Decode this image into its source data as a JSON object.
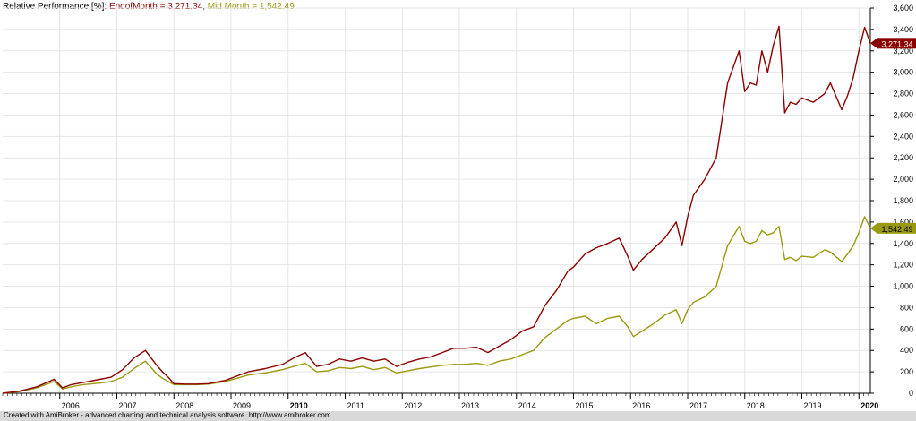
{
  "header": {
    "prefix": "Relative Performance [%]: ",
    "series1_label": "EndofMonth = 3,271.34",
    "sep": ", ",
    "series2_label": "Mid Month = 1,542.49"
  },
  "footer": {
    "text": "Created with AmiBroker - advanced charting and technical analysis software. http://www.amibroker.com"
  },
  "colors": {
    "end_of_month": "#8b0000",
    "mid_month": "#9a9a10",
    "grid": "#e6e6e6",
    "axis": "#000000"
  },
  "chart_data": {
    "type": "line",
    "ylim": [
      0,
      3600
    ],
    "y_ticks": [
      0,
      200,
      400,
      600,
      800,
      1000,
      1200,
      1400,
      1600,
      1800,
      2000,
      2200,
      2400,
      2600,
      2800,
      3000,
      3200,
      3400,
      3600
    ],
    "y_tick_labels": [
      "0",
      "200",
      "400",
      "600",
      "800",
      "1,000",
      "1,200",
      "1,400",
      "1,600",
      "1,800",
      "2,000",
      "2,200",
      "2,400",
      "2,600",
      "2,800",
      "3,000",
      "3,200",
      "3,400",
      "3,600"
    ],
    "xlim": [
      2005.0,
      2020.2
    ],
    "x_tick_labels": [
      "2006",
      "2007",
      "2008",
      "2009",
      "2010",
      "2011",
      "2012",
      "2013",
      "2014",
      "2015",
      "2016",
      "2017",
      "2018",
      "2019",
      "2020"
    ],
    "x_ticks": [
      2006,
      2007,
      2008,
      2009,
      2010,
      2011,
      2012,
      2013,
      2014,
      2015,
      2016,
      2017,
      2018,
      2019,
      2020
    ],
    "grid": true,
    "series": [
      {
        "name": "EndofMonth",
        "last_value_label": "3,271.34",
        "x": [
          2005.0,
          2005.3,
          2005.6,
          2005.9,
          2006.05,
          2006.2,
          2006.4,
          2006.7,
          2006.9,
          2007.1,
          2007.3,
          2007.5,
          2007.7,
          2007.8,
          2007.9,
          2008.0,
          2008.2,
          2008.4,
          2008.6,
          2008.9,
          2009.1,
          2009.3,
          2009.6,
          2009.9,
          2010.1,
          2010.3,
          2010.5,
          2010.7,
          2010.9,
          2011.1,
          2011.3,
          2011.5,
          2011.7,
          2011.9,
          2012.1,
          2012.3,
          2012.5,
          2012.7,
          2012.9,
          2013.1,
          2013.3,
          2013.5,
          2013.7,
          2013.9,
          2014.1,
          2014.3,
          2014.5,
          2014.7,
          2014.9,
          2015.0,
          2015.2,
          2015.4,
          2015.6,
          2015.8,
          2015.95,
          2016.05,
          2016.2,
          2016.4,
          2016.6,
          2016.8,
          2016.9,
          2017.0,
          2017.1,
          2017.3,
          2017.5,
          2017.7,
          2017.9,
          2018.0,
          2018.1,
          2018.2,
          2018.3,
          2018.4,
          2018.5,
          2018.6,
          2018.7,
          2018.8,
          2018.9,
          2019.0,
          2019.2,
          2019.4,
          2019.5,
          2019.7,
          2019.8,
          2019.9,
          2020.0,
          2020.1,
          2020.2
        ],
        "y": [
          0,
          20,
          60,
          130,
          50,
          80,
          100,
          130,
          150,
          220,
          330,
          400,
          260,
          200,
          150,
          90,
          85,
          85,
          90,
          120,
          160,
          200,
          230,
          270,
          330,
          380,
          250,
          270,
          320,
          300,
          330,
          300,
          320,
          250,
          290,
          320,
          340,
          380,
          420,
          420,
          430,
          380,
          440,
          500,
          580,
          620,
          820,
          960,
          1140,
          1180,
          1300,
          1360,
          1400,
          1450,
          1280,
          1150,
          1250,
          1350,
          1450,
          1600,
          1380,
          1650,
          1850,
          2000,
          2200,
          2900,
          3200,
          2820,
          2900,
          2880,
          3200,
          3000,
          3250,
          3430,
          2620,
          2720,
          2700,
          2760,
          2720,
          2800,
          2900,
          2650,
          2780,
          2950,
          3200,
          3420,
          3271
        ]
      },
      {
        "name": "Mid Month",
        "last_value_label": "1,542.49",
        "x": [
          2005.0,
          2005.3,
          2005.6,
          2005.9,
          2006.05,
          2006.2,
          2006.4,
          2006.7,
          2006.9,
          2007.1,
          2007.3,
          2007.5,
          2007.7,
          2007.8,
          2007.9,
          2008.0,
          2008.2,
          2008.4,
          2008.6,
          2008.9,
          2009.1,
          2009.3,
          2009.6,
          2009.9,
          2010.1,
          2010.3,
          2010.5,
          2010.7,
          2010.9,
          2011.1,
          2011.3,
          2011.5,
          2011.7,
          2011.9,
          2012.1,
          2012.3,
          2012.5,
          2012.7,
          2012.9,
          2013.1,
          2013.3,
          2013.5,
          2013.7,
          2013.9,
          2014.1,
          2014.3,
          2014.5,
          2014.7,
          2014.9,
          2015.0,
          2015.2,
          2015.4,
          2015.6,
          2015.8,
          2015.95,
          2016.05,
          2016.2,
          2016.4,
          2016.6,
          2016.8,
          2016.9,
          2017.0,
          2017.1,
          2017.3,
          2017.5,
          2017.7,
          2017.9,
          2018.0,
          2018.1,
          2018.2,
          2018.3,
          2018.4,
          2018.5,
          2018.6,
          2018.7,
          2018.8,
          2018.9,
          2019.0,
          2019.2,
          2019.4,
          2019.5,
          2019.7,
          2019.8,
          2019.9,
          2020.0,
          2020.1,
          2020.2
        ],
        "y": [
          0,
          15,
          50,
          110,
          40,
          60,
          80,
          95,
          110,
          150,
          230,
          300,
          180,
          140,
          110,
          80,
          80,
          80,
          85,
          110,
          140,
          170,
          190,
          220,
          250,
          280,
          200,
          210,
          240,
          230,
          250,
          220,
          240,
          190,
          210,
          230,
          245,
          260,
          270,
          270,
          280,
          260,
          300,
          320,
          360,
          400,
          520,
          600,
          680,
          700,
          720,
          650,
          700,
          720,
          620,
          530,
          580,
          650,
          730,
          780,
          650,
          780,
          850,
          900,
          1000,
          1380,
          1560,
          1420,
          1400,
          1420,
          1520,
          1480,
          1500,
          1560,
          1250,
          1270,
          1240,
          1280,
          1270,
          1340,
          1320,
          1230,
          1300,
          1380,
          1500,
          1650,
          1542
        ]
      }
    ]
  }
}
